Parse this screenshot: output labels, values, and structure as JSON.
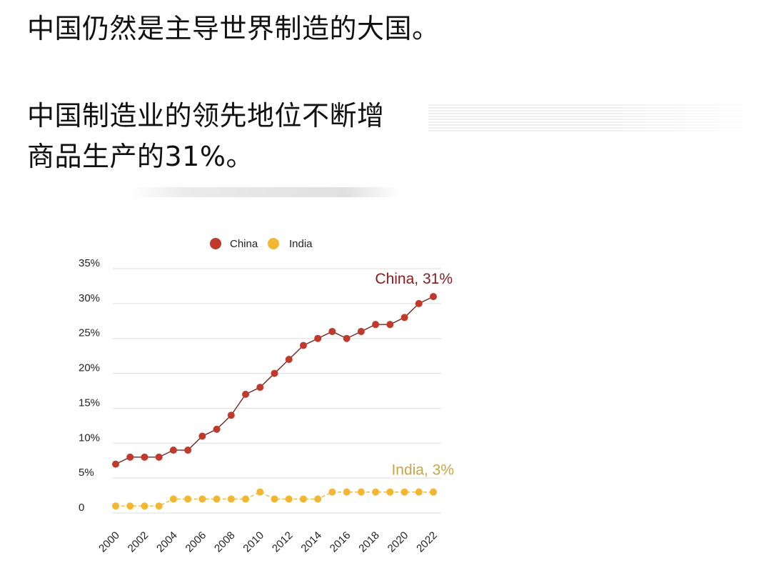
{
  "post": {
    "paragraph1": "中国仍然是主导世界制造的大国。",
    "paragraph2_line1": "中国制造业的领先地位不断增",
    "paragraph2_line2": "商品生产的31%。"
  },
  "chart_data": {
    "type": "line",
    "x": [
      2000,
      2001,
      2002,
      2003,
      2004,
      2005,
      2006,
      2007,
      2008,
      2009,
      2010,
      2011,
      2012,
      2013,
      2014,
      2015,
      2016,
      2017,
      2018,
      2019,
      2020,
      2021,
      2022
    ],
    "x_tick_labels": [
      "2000",
      "2002",
      "2004",
      "2006",
      "2008",
      "2010",
      "2012",
      "2014",
      "2016",
      "2018",
      "2020",
      "2022"
    ],
    "y_tick_labels": [
      "0",
      "5%",
      "10%",
      "15%",
      "20%",
      "25%",
      "30%",
      "35%"
    ],
    "ylim": [
      0,
      35
    ],
    "grid": true,
    "legend_position": "top-center",
    "series": [
      {
        "name": "China",
        "color": "#c0392b",
        "values": [
          7,
          8,
          8,
          8,
          9,
          9,
          11,
          12,
          14,
          17,
          18,
          20,
          22,
          24,
          25,
          26,
          25,
          26,
          27,
          27,
          28,
          30,
          31
        ],
        "end_label": "China, 31%",
        "end_label_color": "#8b1a1a"
      },
      {
        "name": "India",
        "color": "#f2b632",
        "values": [
          1,
          1,
          1,
          1,
          2,
          2,
          2,
          2,
          2,
          2,
          3,
          2,
          2,
          2,
          2,
          3,
          3,
          3,
          3,
          3,
          3,
          3,
          3
        ],
        "end_label": "India, 3%",
        "end_label_color": "#c8a640"
      }
    ]
  }
}
